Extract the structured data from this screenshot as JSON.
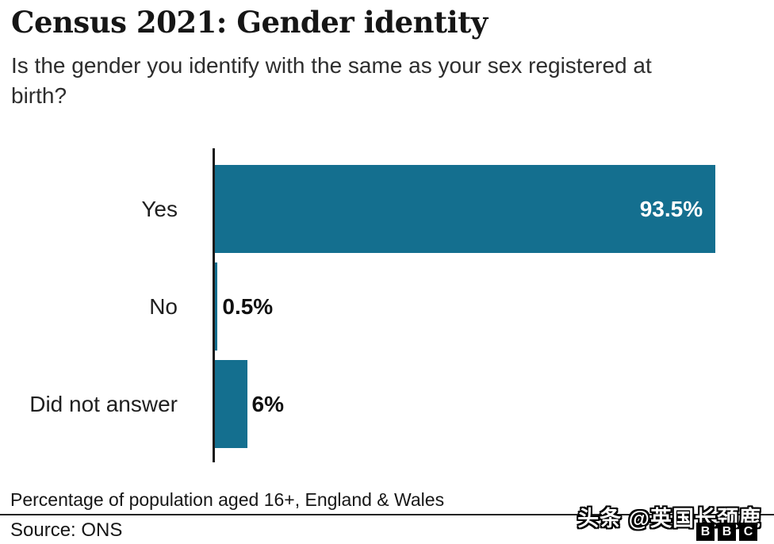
{
  "header": {
    "title": "Census 2021: Gender identity",
    "subtitle": "Is the gender you identify with the same as your sex registered at birth?"
  },
  "chart_data": {
    "type": "bar",
    "orientation": "horizontal",
    "title": "Census 2021: Gender identity",
    "subtitle": "Is the gender you identify with the same as your sex registered at birth?",
    "categories": [
      "Yes",
      "No",
      "Did not answer"
    ],
    "values": [
      93.5,
      0.5,
      6
    ],
    "value_labels": [
      "93.5%",
      "0.5%",
      "6%"
    ],
    "label_inside": [
      true,
      false,
      false
    ],
    "xlim": [
      0,
      100
    ],
    "xlabel": "Percentage of population aged 16+, England & Wales",
    "ylabel": "",
    "grid": false,
    "legend": false,
    "bar_color": "#146f8f",
    "axis_color": "#1a1a1a"
  },
  "footer": {
    "note": "Percentage of population aged 16+, England & Wales",
    "source": "Source: ONS",
    "watermark": "头条 @英国长颈鹿",
    "logo_letters": [
      "B",
      "B",
      "C"
    ]
  }
}
